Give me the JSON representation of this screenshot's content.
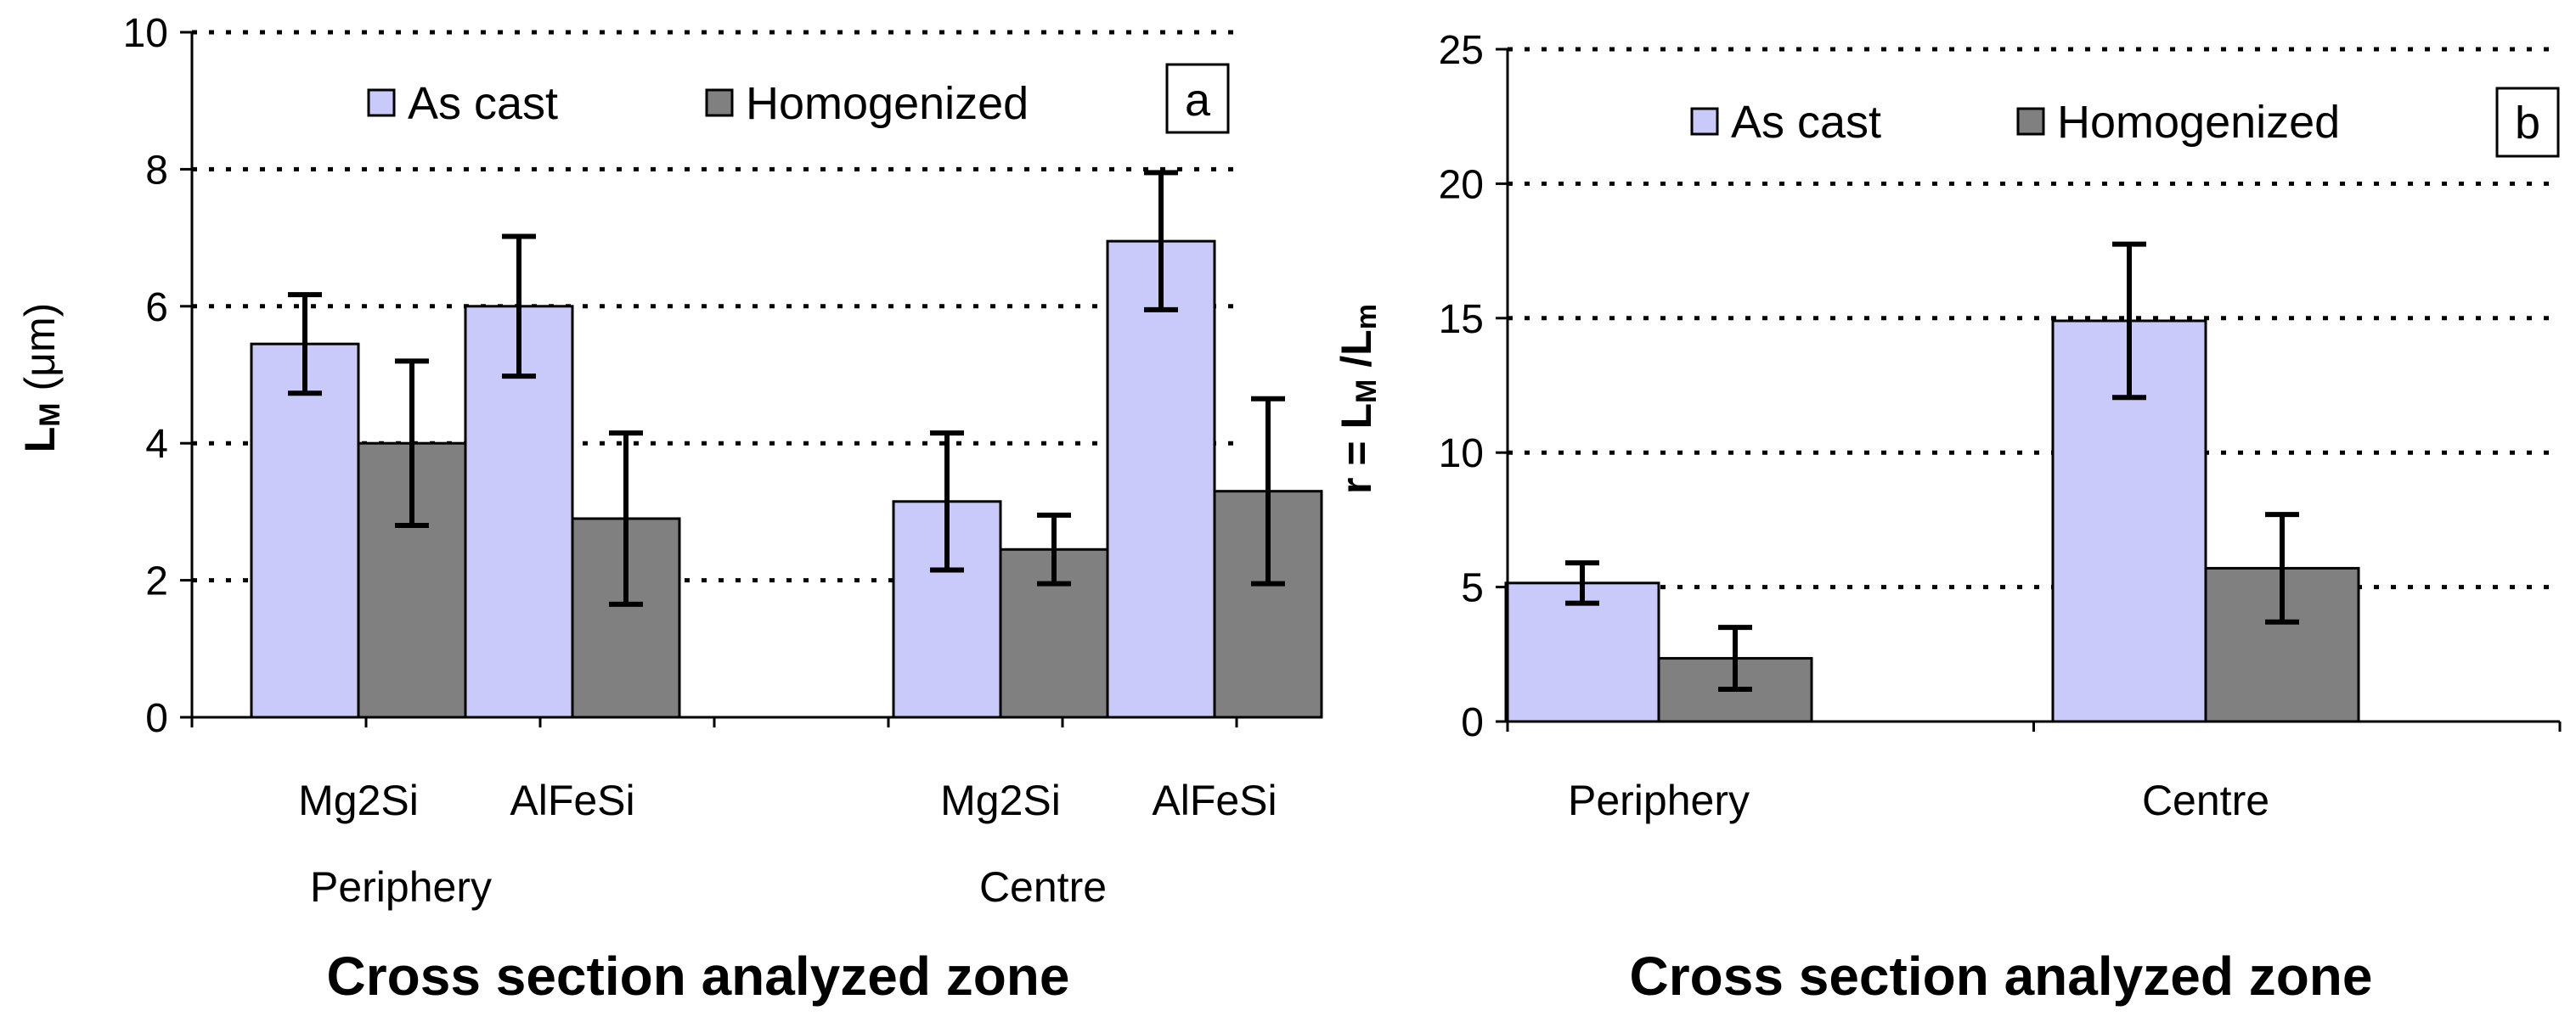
{
  "colors": {
    "as_cast": "#c9c9fa",
    "homogenized": "#808080"
  },
  "chart_data": [
    {
      "id": "a",
      "type": "bar",
      "panel_label": "a",
      "legend": [
        "As cast",
        "Homogenized"
      ],
      "ylabel_main": "L",
      "ylabel_sub": "M",
      "ylabel_unit": " (μm)",
      "ylim": [
        0,
        10
      ],
      "yticks": [
        0,
        2,
        4,
        6,
        8,
        10
      ],
      "xlabel": "Cross section analyzed zone",
      "groups": [
        {
          "name": "Periphery",
          "categories": [
            "Mg2Si",
            "AlFeSi"
          ]
        },
        {
          "name": "Centre",
          "categories": [
            "Mg2Si",
            "AlFeSi"
          ]
        }
      ],
      "series": [
        {
          "name": "As cast",
          "values": [
            5.45,
            6.0,
            3.15,
            6.95
          ],
          "errors": [
            0.72,
            1.02,
            1.0,
            1.0
          ]
        },
        {
          "name": "Homogenized",
          "values": [
            4.0,
            2.9,
            2.45,
            3.3
          ],
          "errors": [
            1.2,
            1.25,
            0.5,
            1.35
          ]
        }
      ]
    },
    {
      "id": "b",
      "type": "bar",
      "panel_label": "b",
      "legend": [
        "As cast",
        "Homogenized"
      ],
      "ylabel_main": "r = L",
      "ylabel_sub": "M",
      "ylabel_mid": " /L",
      "ylabel_sub2": "m",
      "ylim": [
        0,
        25
      ],
      "yticks": [
        0,
        5,
        10,
        15,
        20,
        25
      ],
      "xlabel": "Cross section analyzed zone",
      "groups": [
        {
          "name": "Periphery",
          "categories": []
        },
        {
          "name": "Centre",
          "categories": []
        }
      ],
      "series": [
        {
          "name": "As cast",
          "values": [
            5.15,
            14.9
          ],
          "errors": [
            0.75,
            2.85
          ]
        },
        {
          "name": "Homogenized",
          "values": [
            2.35,
            5.7
          ],
          "errors": [
            1.15,
            2.0
          ]
        }
      ]
    }
  ]
}
